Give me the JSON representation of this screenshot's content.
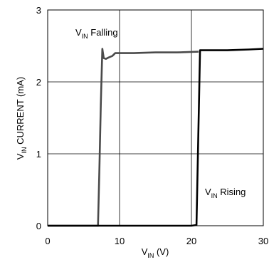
{
  "chart_data": {
    "type": "line",
    "title": "",
    "xlabel": {
      "base": "V",
      "sub": "IN",
      "rest": " (V)"
    },
    "ylabel": {
      "base": "V",
      "sub": "IN",
      "rest": " CURRENT (mA)"
    },
    "xlim": [
      0,
      30
    ],
    "ylim": [
      0,
      3
    ],
    "xticks": [
      0,
      10,
      20,
      30
    ],
    "yticks": [
      0,
      1,
      2,
      3
    ],
    "xtick_labels": [
      "0",
      "10",
      "20",
      "30"
    ],
    "ytick_labels": [
      "0",
      "1",
      "2",
      "3"
    ],
    "grid": true,
    "series": [
      {
        "name": "VIN Falling",
        "color": "#4a4a4a",
        "x": [
          0,
          7.0,
          7.2,
          7.4,
          7.6,
          7.8,
          8.1,
          8.5,
          9.0,
          9.4,
          10.0,
          12.0,
          15.0,
          18.0,
          21.0
        ],
        "y": [
          0,
          0,
          0.8,
          1.7,
          2.46,
          2.33,
          2.32,
          2.34,
          2.36,
          2.4,
          2.4,
          2.4,
          2.41,
          2.41,
          2.42
        ]
      },
      {
        "name": "VIN Rising",
        "color": "#000000",
        "x": [
          0,
          20.0,
          20.7,
          21.2,
          25.0,
          28.0,
          30.0
        ],
        "y": [
          0,
          0,
          0.01,
          2.44,
          2.44,
          2.45,
          2.46
        ]
      }
    ],
    "annotations": [
      {
        "key": "falling",
        "base": "V",
        "sub": "IN",
        "rest": " Falling"
      },
      {
        "key": "rising",
        "base": "V",
        "sub": "IN",
        "rest": " Rising"
      }
    ]
  }
}
